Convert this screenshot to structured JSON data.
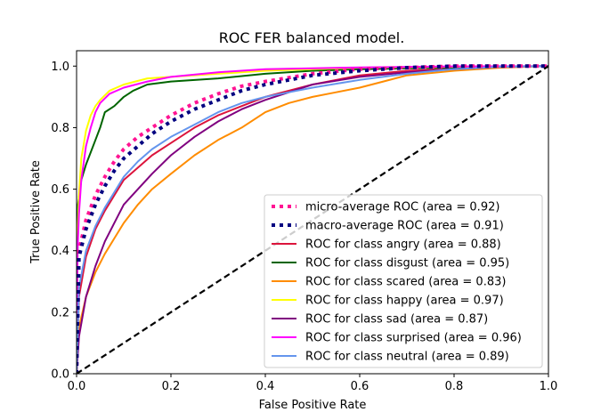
{
  "chart_data": {
    "type": "line",
    "title": "ROC FER balanced model.",
    "xlabel": "False Positive Rate",
    "ylabel": "True Positive Rate",
    "xlim": [
      0.0,
      1.0
    ],
    "ylim": [
      0.0,
      1.05
    ],
    "xticks": [
      "0.0",
      "0.2",
      "0.4",
      "0.6",
      "0.8",
      "1.0"
    ],
    "yticks": [
      "0.0",
      "0.2",
      "0.4",
      "0.6",
      "0.8",
      "1.0"
    ],
    "grid": false,
    "legend_position": "lower-right",
    "series": [
      {
        "name": "micro-average ROC (area = 0.92)",
        "color": "#ff1493",
        "style": "dotted-thick",
        "x": [
          0,
          0.005,
          0.02,
          0.04,
          0.06,
          0.08,
          0.1,
          0.13,
          0.16,
          0.2,
          0.25,
          0.3,
          0.35,
          0.4,
          0.5,
          0.6,
          0.7,
          0.8,
          0.9,
          1.0
        ],
        "y": [
          0,
          0.4,
          0.5,
          0.58,
          0.64,
          0.69,
          0.73,
          0.77,
          0.8,
          0.84,
          0.88,
          0.91,
          0.935,
          0.95,
          0.975,
          0.99,
          0.995,
          1.0,
          1.0,
          1.0
        ]
      },
      {
        "name": "macro-average ROC (area = 0.91)",
        "color": "#000080",
        "style": "dotted-thick",
        "x": [
          0,
          0.005,
          0.02,
          0.04,
          0.06,
          0.08,
          0.1,
          0.13,
          0.16,
          0.2,
          0.25,
          0.3,
          0.35,
          0.4,
          0.5,
          0.6,
          0.7,
          0.8,
          0.9,
          1.0
        ],
        "y": [
          0,
          0.38,
          0.47,
          0.55,
          0.61,
          0.66,
          0.7,
          0.74,
          0.78,
          0.82,
          0.86,
          0.89,
          0.92,
          0.94,
          0.97,
          0.985,
          0.995,
          1.0,
          1.0,
          1.0
        ]
      },
      {
        "name": "ROC for class angry (area = 0.88)",
        "color": "#dc143c",
        "style": "solid",
        "x": [
          0,
          0.005,
          0.02,
          0.04,
          0.06,
          0.08,
          0.1,
          0.13,
          0.16,
          0.2,
          0.25,
          0.3,
          0.35,
          0.4,
          0.5,
          0.6,
          0.7,
          0.8,
          0.9,
          1.0
        ],
        "y": [
          0,
          0.25,
          0.38,
          0.47,
          0.53,
          0.58,
          0.63,
          0.67,
          0.71,
          0.75,
          0.8,
          0.84,
          0.87,
          0.9,
          0.94,
          0.97,
          0.985,
          0.99,
          0.998,
          1.0
        ]
      },
      {
        "name": "ROC for class disgust (area = 0.95)",
        "color": "#006400",
        "style": "solid",
        "x": [
          0,
          0.003,
          0.01,
          0.02,
          0.03,
          0.04,
          0.05,
          0.06,
          0.08,
          0.1,
          0.12,
          0.15,
          0.2,
          0.3,
          0.4,
          0.5,
          0.6,
          0.8,
          1.0
        ],
        "y": [
          0,
          0.55,
          0.63,
          0.68,
          0.72,
          0.76,
          0.8,
          0.85,
          0.87,
          0.9,
          0.92,
          0.94,
          0.95,
          0.96,
          0.975,
          0.985,
          0.99,
          0.995,
          1.0
        ]
      },
      {
        "name": "ROC for class scared (area = 0.83)",
        "color": "#ff8c00",
        "style": "solid",
        "x": [
          0,
          0.005,
          0.02,
          0.04,
          0.06,
          0.08,
          0.1,
          0.13,
          0.16,
          0.2,
          0.25,
          0.3,
          0.35,
          0.4,
          0.45,
          0.5,
          0.55,
          0.6,
          0.65,
          0.7,
          0.8,
          0.9,
          1.0
        ],
        "y": [
          0,
          0.15,
          0.25,
          0.33,
          0.39,
          0.44,
          0.49,
          0.55,
          0.6,
          0.65,
          0.71,
          0.76,
          0.8,
          0.85,
          0.88,
          0.9,
          0.915,
          0.93,
          0.95,
          0.97,
          0.985,
          0.995,
          1.0
        ]
      },
      {
        "name": "ROC for class happy (area = 0.97)",
        "color": "#ffff00",
        "style": "solid",
        "x": [
          0,
          0.002,
          0.005,
          0.01,
          0.02,
          0.03,
          0.04,
          0.05,
          0.07,
          0.1,
          0.15,
          0.2,
          0.3,
          0.4,
          0.5,
          0.6,
          0.8,
          1.0
        ],
        "y": [
          0,
          0.45,
          0.58,
          0.7,
          0.79,
          0.84,
          0.87,
          0.89,
          0.92,
          0.94,
          0.96,
          0.965,
          0.975,
          0.985,
          0.99,
          0.995,
          0.998,
          1.0
        ]
      },
      {
        "name": "ROC for class sad (area = 0.87)",
        "color": "#800080",
        "style": "solid",
        "x": [
          0,
          0.005,
          0.02,
          0.04,
          0.06,
          0.08,
          0.1,
          0.13,
          0.16,
          0.2,
          0.25,
          0.3,
          0.35,
          0.4,
          0.5,
          0.6,
          0.7,
          0.8,
          0.9,
          1.0
        ],
        "y": [
          0,
          0.12,
          0.25,
          0.35,
          0.43,
          0.49,
          0.55,
          0.6,
          0.65,
          0.71,
          0.77,
          0.82,
          0.86,
          0.89,
          0.94,
          0.965,
          0.98,
          0.99,
          0.998,
          1.0
        ]
      },
      {
        "name": "ROC for class surprised (area = 0.96)",
        "color": "#ff00ff",
        "style": "solid",
        "x": [
          0,
          0.002,
          0.005,
          0.01,
          0.02,
          0.03,
          0.04,
          0.05,
          0.07,
          0.1,
          0.15,
          0.2,
          0.3,
          0.4,
          0.5,
          0.6,
          0.8,
          1.0
        ],
        "y": [
          0,
          0.4,
          0.52,
          0.63,
          0.74,
          0.8,
          0.85,
          0.88,
          0.91,
          0.93,
          0.95,
          0.965,
          0.98,
          0.99,
          0.993,
          0.996,
          0.999,
          1.0
        ]
      },
      {
        "name": "ROC for class neutral (area = 0.89)",
        "color": "#6495ed",
        "style": "solid",
        "x": [
          0,
          0.005,
          0.02,
          0.04,
          0.06,
          0.08,
          0.1,
          0.13,
          0.16,
          0.2,
          0.25,
          0.3,
          0.35,
          0.4,
          0.45,
          0.5,
          0.6,
          0.7,
          0.8,
          0.9,
          1.0
        ],
        "y": [
          0,
          0.28,
          0.4,
          0.48,
          0.54,
          0.59,
          0.64,
          0.69,
          0.73,
          0.77,
          0.81,
          0.85,
          0.88,
          0.9,
          0.915,
          0.93,
          0.955,
          0.975,
          0.99,
          0.998,
          1.0
        ]
      }
    ],
    "diagonal": {
      "x": [
        0,
        1
      ],
      "y": [
        0,
        1
      ],
      "color": "#000000",
      "style": "dashed"
    }
  }
}
